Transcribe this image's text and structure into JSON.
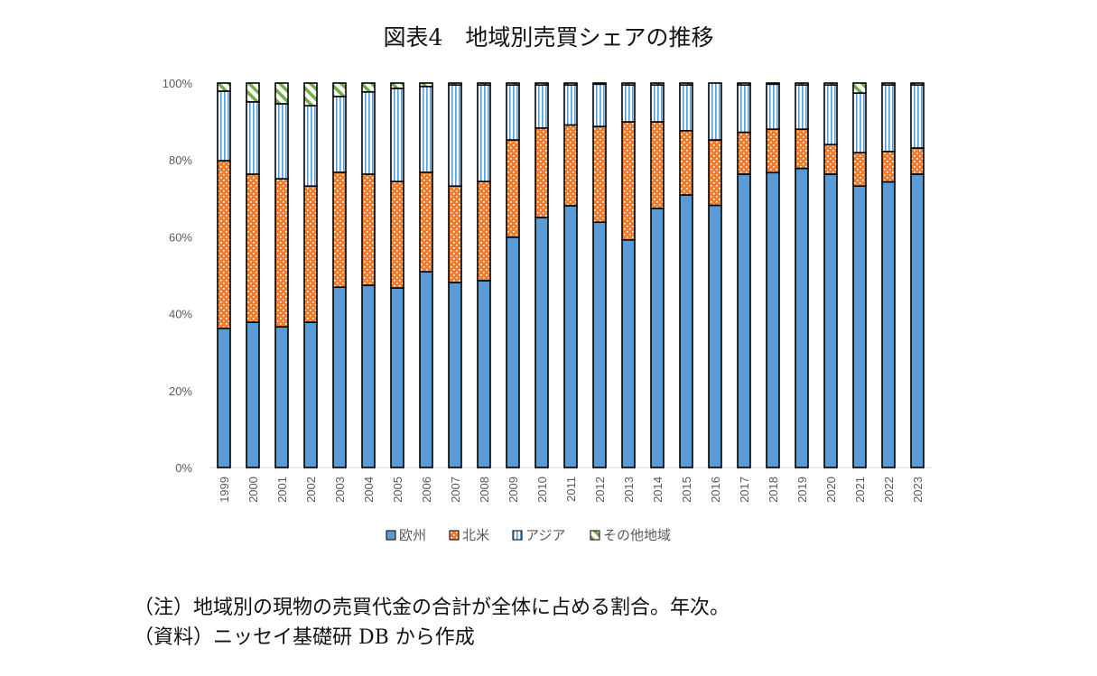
{
  "chart_data": {
    "type": "bar",
    "stacked": true,
    "title": "図表4　地域別売買シェアの推移",
    "xlabel": "",
    "ylabel": "",
    "ylim": [
      0,
      100
    ],
    "yticks": [
      "0%",
      "20%",
      "40%",
      "60%",
      "80%",
      "100%"
    ],
    "grid": false,
    "legend_position": "bottom",
    "categories": [
      "1999",
      "2000",
      "2001",
      "2002",
      "2003",
      "2004",
      "2005",
      "2006",
      "2007",
      "2008",
      "2009",
      "2010",
      "2011",
      "2012",
      "2013",
      "2014",
      "2015",
      "2016",
      "2017",
      "2018",
      "2019",
      "2020",
      "2021",
      "2022",
      "2023"
    ],
    "series": [
      {
        "name": "欧州",
        "color": "#5B9BD5",
        "pattern": "solid",
        "values": [
          36.2,
          37.8,
          36.6,
          37.8,
          46.9,
          47.4,
          46.7,
          50.9,
          48.1,
          48.6,
          59.9,
          65.0,
          68.1,
          63.8,
          59.2,
          67.4,
          70.9,
          68.2,
          76.3,
          76.7,
          77.8,
          76.3,
          73.2,
          74.3,
          76.3
        ]
      },
      {
        "name": "北米",
        "color": "#ED7D31",
        "pattern": "dots",
        "values": [
          43.6,
          38.5,
          38.5,
          35.4,
          29.9,
          28.9,
          27.7,
          25.9,
          25.1,
          25.8,
          25.3,
          23.3,
          21.0,
          24.9,
          30.7,
          22.5,
          16.7,
          17.0,
          10.9,
          11.3,
          10.2,
          7.7,
          8.7,
          7.9,
          6.8
        ]
      },
      {
        "name": "アジア",
        "color": "#5B9BD5",
        "pattern": "vertical-stripes",
        "values": [
          18.1,
          18.8,
          19.5,
          20.9,
          19.7,
          21.4,
          24.2,
          22.3,
          26.3,
          25.1,
          14.3,
          11.2,
          10.4,
          11.0,
          9.6,
          9.6,
          11.9,
          14.8,
          12.3,
          11.7,
          11.5,
          15.5,
          15.5,
          17.3,
          16.4
        ]
      },
      {
        "name": "その他地域",
        "color": "#70AD47",
        "pattern": "diagonal-stripes",
        "values": [
          2.1,
          4.9,
          5.4,
          5.9,
          3.5,
          2.3,
          1.4,
          0.9,
          0.5,
          0.5,
          0.5,
          0.5,
          0.5,
          0.3,
          0.5,
          0.5,
          0.5,
          0.0,
          0.5,
          0.3,
          0.5,
          0.5,
          2.6,
          0.5,
          0.5
        ]
      }
    ]
  },
  "notes": {
    "note": "（注）地域別の現物の売買代金の合計が全体に占める割合。年次。",
    "source": "（資料）ニッセイ基礎研 DB から作成"
  }
}
